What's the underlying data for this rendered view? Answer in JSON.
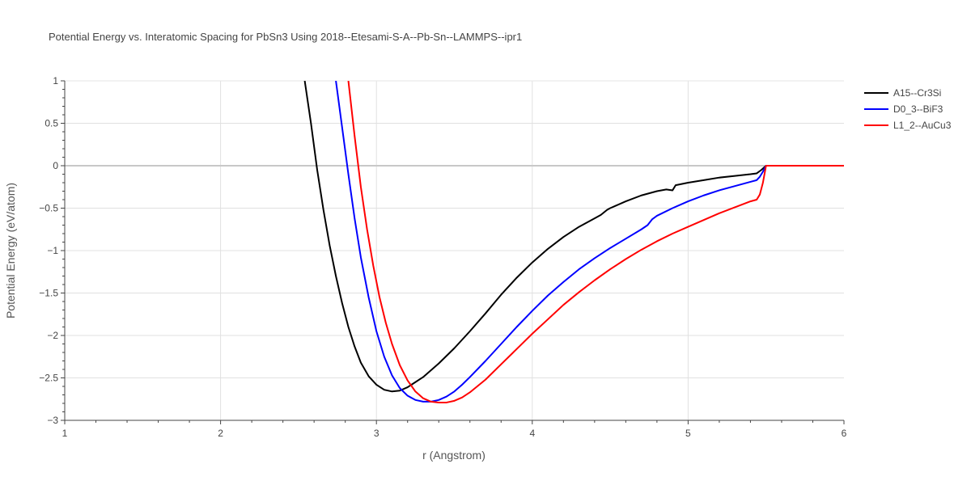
{
  "chart_data": {
    "type": "line",
    "title": "Potential Energy vs. Interatomic Spacing for PbSn3 Using 2018--Etesami-S-A--Pb-Sn--LAMMPS--ipr1",
    "xlabel": "r (Angstrom)",
    "ylabel": "Potential Energy (eV/atom)",
    "xlim": [
      1,
      6
    ],
    "ylim": [
      -3,
      1
    ],
    "xticks": [
      1,
      2,
      3,
      4,
      5,
      6
    ],
    "xtick_labels": [
      "1",
      "2",
      "3",
      "4",
      "5",
      "6"
    ],
    "yticks": [
      1,
      0.5,
      0,
      -0.5,
      -1,
      -1.5,
      -2,
      -2.5,
      -3
    ],
    "ytick_labels": [
      "1",
      "0.5",
      "0",
      "−0.5",
      "−1",
      "−1.5",
      "−2",
      "−2.5",
      "−3"
    ],
    "grid": true,
    "legend_position": "top-right",
    "series": [
      {
        "name": "A15--Cr3Si",
        "color": "#000000",
        "x": [
          2.54,
          2.58,
          2.62,
          2.66,
          2.7,
          2.74,
          2.78,
          2.82,
          2.86,
          2.9,
          2.95,
          3.0,
          3.05,
          3.1,
          3.15,
          3.2,
          3.3,
          3.4,
          3.5,
          3.6,
          3.7,
          3.8,
          3.9,
          4.0,
          4.1,
          4.2,
          4.3,
          4.4,
          4.44,
          4.46,
          4.48,
          4.5,
          4.6,
          4.7,
          4.8,
          4.86,
          4.9,
          4.92,
          5.0,
          5.1,
          5.2,
          5.3,
          5.4,
          5.44,
          5.47,
          5.5,
          5.6,
          5.8,
          6.0
        ],
        "y": [
          1.0,
          0.5,
          -0.05,
          -0.52,
          -0.94,
          -1.3,
          -1.62,
          -1.9,
          -2.13,
          -2.32,
          -2.48,
          -2.58,
          -2.64,
          -2.66,
          -2.65,
          -2.61,
          -2.49,
          -2.33,
          -2.15,
          -1.95,
          -1.74,
          -1.52,
          -1.32,
          -1.14,
          -0.98,
          -0.84,
          -0.72,
          -0.62,
          -0.58,
          -0.55,
          -0.52,
          -0.5,
          -0.42,
          -0.35,
          -0.3,
          -0.28,
          -0.29,
          -0.23,
          -0.2,
          -0.17,
          -0.14,
          -0.12,
          -0.1,
          -0.09,
          -0.05,
          0.0,
          0.0,
          0.0,
          0.0
        ]
      },
      {
        "name": "D0_3--BiF3",
        "color": "#0000ff",
        "x": [
          2.74,
          2.78,
          2.82,
          2.86,
          2.9,
          2.95,
          3.0,
          3.05,
          3.1,
          3.15,
          3.2,
          3.25,
          3.3,
          3.35,
          3.4,
          3.45,
          3.5,
          3.55,
          3.6,
          3.7,
          3.8,
          3.9,
          4.0,
          4.1,
          4.2,
          4.3,
          4.4,
          4.5,
          4.6,
          4.7,
          4.74,
          4.77,
          4.8,
          4.9,
          5.0,
          5.1,
          5.2,
          5.3,
          5.4,
          5.44,
          5.46,
          5.48,
          5.5,
          5.6,
          5.8,
          6.0
        ],
        "y": [
          1.0,
          0.45,
          -0.1,
          -0.62,
          -1.08,
          -1.55,
          -1.95,
          -2.25,
          -2.47,
          -2.62,
          -2.71,
          -2.76,
          -2.78,
          -2.78,
          -2.76,
          -2.72,
          -2.66,
          -2.58,
          -2.49,
          -2.3,
          -2.1,
          -1.9,
          -1.71,
          -1.53,
          -1.37,
          -1.22,
          -1.09,
          -0.97,
          -0.86,
          -0.75,
          -0.7,
          -0.63,
          -0.59,
          -0.5,
          -0.42,
          -0.35,
          -0.29,
          -0.24,
          -0.19,
          -0.17,
          -0.13,
          -0.07,
          0.0,
          0.0,
          0.0,
          0.0
        ]
      },
      {
        "name": "L1_2--AuCu3",
        "color": "#ff0000",
        "x": [
          2.82,
          2.86,
          2.9,
          2.94,
          2.98,
          3.02,
          3.06,
          3.1,
          3.15,
          3.2,
          3.25,
          3.3,
          3.35,
          3.4,
          3.45,
          3.5,
          3.55,
          3.6,
          3.7,
          3.8,
          3.9,
          4.0,
          4.1,
          4.2,
          4.3,
          4.4,
          4.5,
          4.6,
          4.7,
          4.8,
          4.9,
          5.0,
          5.1,
          5.2,
          5.3,
          5.4,
          5.44,
          5.46,
          5.48,
          5.5,
          5.6,
          5.8,
          6.0
        ],
        "y": [
          1.0,
          0.35,
          -0.25,
          -0.75,
          -1.18,
          -1.55,
          -1.85,
          -2.1,
          -2.35,
          -2.53,
          -2.66,
          -2.74,
          -2.78,
          -2.79,
          -2.79,
          -2.77,
          -2.73,
          -2.67,
          -2.52,
          -2.34,
          -2.16,
          -1.98,
          -1.81,
          -1.64,
          -1.49,
          -1.35,
          -1.22,
          -1.1,
          -0.99,
          -0.89,
          -0.8,
          -0.72,
          -0.64,
          -0.56,
          -0.49,
          -0.42,
          -0.4,
          -0.34,
          -0.2,
          0.0,
          0.0,
          0.0,
          0.0
        ]
      }
    ]
  }
}
